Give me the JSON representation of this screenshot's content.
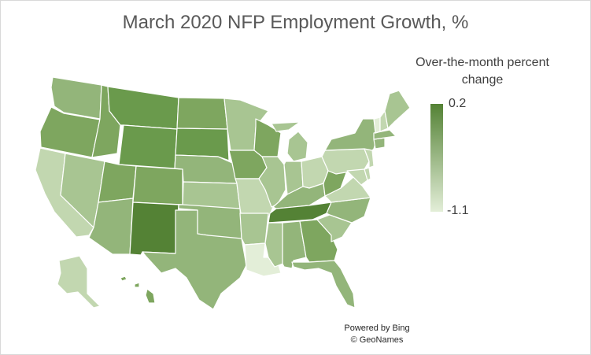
{
  "title": "March 2020 NFP Employment Growth, %",
  "legend": {
    "title_line1": "Over-the-month percent",
    "title_line2": "change",
    "max_label": "0.2",
    "min_label": "-1.1",
    "max_color": "#548235",
    "min_color": "#e3eed8"
  },
  "credits": {
    "line1": "Powered by Bing",
    "line2": "© GeoNames"
  },
  "map_data": {
    "type": "choropleth",
    "region": "United States",
    "value_range": [
      -1.1,
      0.2
    ],
    "color_shades": {
      "darkest": "#548235",
      "dark": "#6a9a4c",
      "medium_dark": "#7ea65f",
      "medium": "#93b57a",
      "medium_light": "#a8c592",
      "light": "#c2d7b0",
      "lightest": "#e3eed8"
    },
    "states": [
      {
        "state": "WA",
        "shade": "medium"
      },
      {
        "state": "OR",
        "shade": "medium_dark"
      },
      {
        "state": "CA",
        "shade": "light"
      },
      {
        "state": "NV",
        "shade": "medium_light"
      },
      {
        "state": "ID",
        "shade": "medium_dark"
      },
      {
        "state": "MT",
        "shade": "dark"
      },
      {
        "state": "WY",
        "shade": "dark"
      },
      {
        "state": "UT",
        "shade": "medium_dark"
      },
      {
        "state": "AZ",
        "shade": "medium"
      },
      {
        "state": "CO",
        "shade": "medium_dark"
      },
      {
        "state": "NM",
        "shade": "darkest"
      },
      {
        "state": "ND",
        "shade": "medium_dark"
      },
      {
        "state": "SD",
        "shade": "dark"
      },
      {
        "state": "NE",
        "shade": "medium"
      },
      {
        "state": "KS",
        "shade": "medium_light"
      },
      {
        "state": "OK",
        "shade": "medium"
      },
      {
        "state": "TX",
        "shade": "medium"
      },
      {
        "state": "MN",
        "shade": "medium_light"
      },
      {
        "state": "IA",
        "shade": "medium_dark"
      },
      {
        "state": "MO",
        "shade": "light"
      },
      {
        "state": "AR",
        "shade": "medium_light"
      },
      {
        "state": "LA",
        "shade": "lightest"
      },
      {
        "state": "WI",
        "shade": "medium_dark"
      },
      {
        "state": "IL",
        "shade": "medium_light"
      },
      {
        "state": "MI",
        "shade": "medium_light"
      },
      {
        "state": "IN",
        "shade": "medium_light"
      },
      {
        "state": "OH",
        "shade": "light"
      },
      {
        "state": "KY",
        "shade": "medium"
      },
      {
        "state": "TN",
        "shade": "darkest"
      },
      {
        "state": "MS",
        "shade": "medium_light"
      },
      {
        "state": "AL",
        "shade": "medium"
      },
      {
        "state": "GA",
        "shade": "medium_dark"
      },
      {
        "state": "FL",
        "shade": "medium"
      },
      {
        "state": "SC",
        "shade": "medium_light"
      },
      {
        "state": "NC",
        "shade": "medium"
      },
      {
        "state": "VA",
        "shade": "light"
      },
      {
        "state": "WV",
        "shade": "medium_dark"
      },
      {
        "state": "PA",
        "shade": "light"
      },
      {
        "state": "NY",
        "shade": "medium"
      },
      {
        "state": "VT",
        "shade": "lightest"
      },
      {
        "state": "NH",
        "shade": "light"
      },
      {
        "state": "ME",
        "shade": "medium_light"
      },
      {
        "state": "MA",
        "shade": "medium"
      },
      {
        "state": "CT",
        "shade": "medium"
      },
      {
        "state": "NJ",
        "shade": "light"
      },
      {
        "state": "DE",
        "shade": "light"
      },
      {
        "state": "MD",
        "shade": "light"
      },
      {
        "state": "AK",
        "shade": "light"
      },
      {
        "state": "HI",
        "shade": "medium_dark"
      }
    ]
  }
}
